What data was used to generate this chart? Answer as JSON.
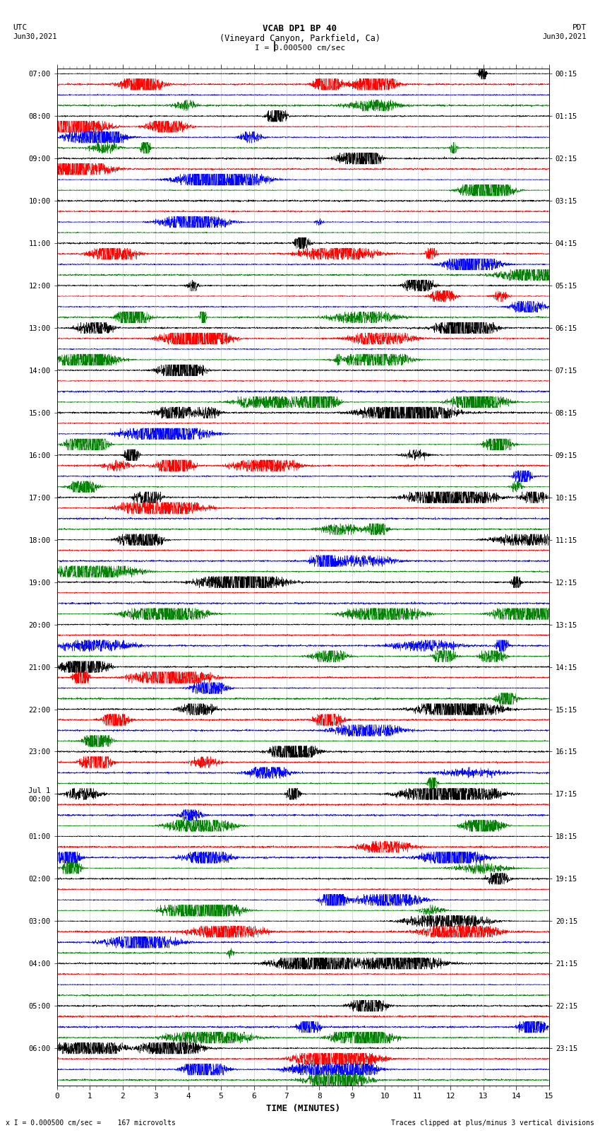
{
  "title_line1": "VCAB DP1 BP 40",
  "title_line2": "(Vineyard Canyon, Parkfield, Ca)",
  "scale_label": "I = 0.000500 cm/sec",
  "utc_label": "UTC",
  "utc_date": "Jun30,2021",
  "pdt_label": "PDT",
  "pdt_date": "Jun30,2021",
  "bottom_left": "x I = 0.000500 cm/sec =    167 microvolts",
  "bottom_right": "Traces clipped at plus/minus 3 vertical divisions",
  "xlabel": "TIME (MINUTES)",
  "left_times": [
    "07:00",
    "08:00",
    "09:00",
    "10:00",
    "11:00",
    "12:00",
    "13:00",
    "14:00",
    "15:00",
    "16:00",
    "17:00",
    "18:00",
    "19:00",
    "20:00",
    "21:00",
    "22:00",
    "23:00",
    "Jul 1\n00:00",
    "01:00",
    "02:00",
    "03:00",
    "04:00",
    "05:00",
    "06:00"
  ],
  "right_times": [
    "00:15",
    "01:15",
    "02:15",
    "03:15",
    "04:15",
    "05:15",
    "06:15",
    "07:15",
    "08:15",
    "09:15",
    "10:15",
    "11:15",
    "12:15",
    "13:15",
    "14:15",
    "15:15",
    "16:15",
    "17:15",
    "18:15",
    "19:15",
    "20:15",
    "21:15",
    "22:15",
    "23:15"
  ],
  "n_rows": 24,
  "n_traces_per_row": 4,
  "trace_colors": [
    "black",
    "red",
    "blue",
    "green"
  ],
  "fig_width": 8.5,
  "fig_height": 16.13,
  "bg_color": "white",
  "grid_color": "#aaaaaa",
  "xmin": 0,
  "xmax": 15,
  "xticks": [
    0,
    1,
    2,
    3,
    4,
    5,
    6,
    7,
    8,
    9,
    10,
    11,
    12,
    13,
    14,
    15
  ]
}
